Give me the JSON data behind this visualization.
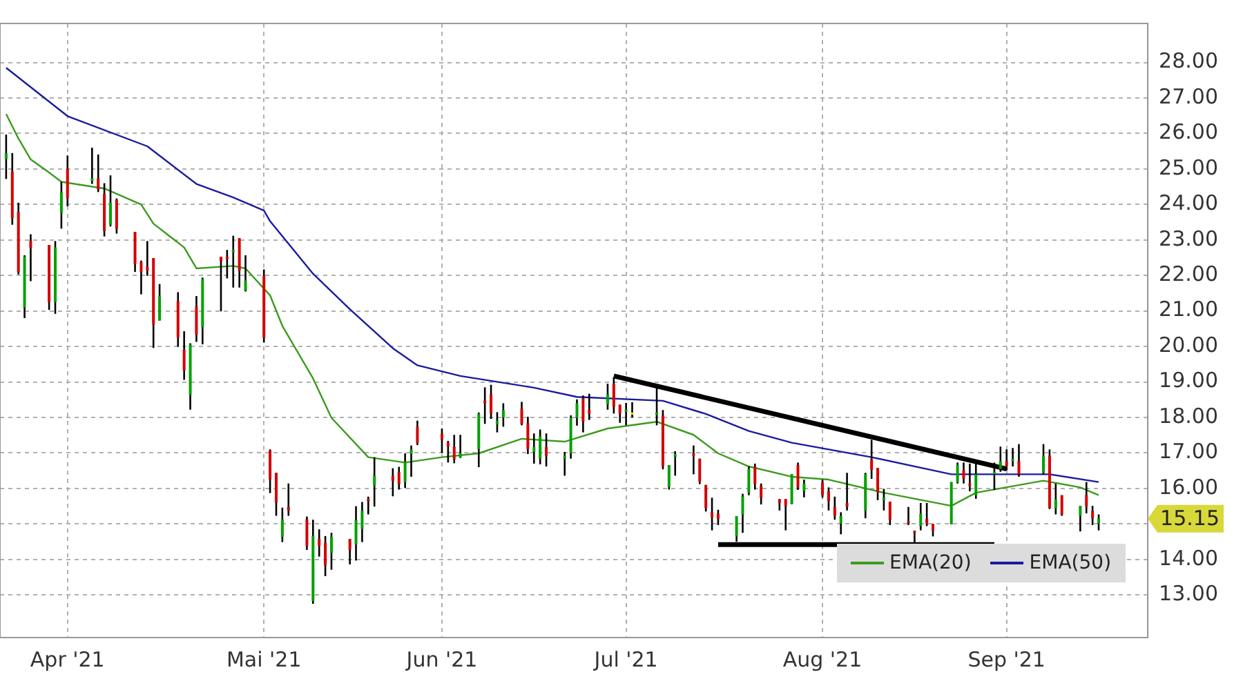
{
  "chart_data": {
    "type": "candlestick",
    "x": [
      "2021-03-22",
      "2021-03-23",
      "2021-03-24",
      "2021-03-25",
      "2021-03-26",
      "2021-03-29",
      "2021-03-30",
      "2021-03-31",
      "2021-04-01",
      "2021-04-05",
      "2021-04-06",
      "2021-04-07",
      "2021-04-08",
      "2021-04-09",
      "2021-04-12",
      "2021-04-13",
      "2021-04-14",
      "2021-04-15",
      "2021-04-16",
      "2021-04-19",
      "2021-04-20",
      "2021-04-21",
      "2021-04-22",
      "2021-04-23",
      "2021-04-26",
      "2021-04-27",
      "2021-04-28",
      "2021-04-29",
      "2021-04-30",
      "2021-05-03",
      "2021-05-04",
      "2021-05-05",
      "2021-05-06",
      "2021-05-07",
      "2021-05-10",
      "2021-05-11",
      "2021-05-12",
      "2021-05-13",
      "2021-05-14",
      "2021-05-17",
      "2021-05-18",
      "2021-05-19",
      "2021-05-20",
      "2021-05-21",
      "2021-05-24",
      "2021-05-25",
      "2021-05-26",
      "2021-05-27",
      "2021-05-28",
      "2021-06-01",
      "2021-06-02",
      "2021-06-03",
      "2021-06-04",
      "2021-06-07",
      "2021-06-08",
      "2021-06-09",
      "2021-06-10",
      "2021-06-11",
      "2021-06-14",
      "2021-06-15",
      "2021-06-16",
      "2021-06-17",
      "2021-06-18",
      "2021-06-21",
      "2021-06-22",
      "2021-06-23",
      "2021-06-24",
      "2021-06-25",
      "2021-06-28",
      "2021-06-29",
      "2021-06-30",
      "2021-07-01",
      "2021-07-02",
      "2021-07-06",
      "2021-07-07",
      "2021-07-08",
      "2021-07-09",
      "2021-07-12",
      "2021-07-13",
      "2021-07-14",
      "2021-07-15",
      "2021-07-16",
      "2021-07-19",
      "2021-07-20",
      "2021-07-21",
      "2021-07-22",
      "2021-07-23",
      "2021-07-26",
      "2021-07-27",
      "2021-07-28",
      "2021-07-29",
      "2021-07-30",
      "2021-08-02",
      "2021-08-03",
      "2021-08-04",
      "2021-08-05",
      "2021-08-06",
      "2021-08-09",
      "2021-08-10",
      "2021-08-11",
      "2021-08-12",
      "2021-08-13",
      "2021-08-16",
      "2021-08-17",
      "2021-08-18",
      "2021-08-19",
      "2021-08-20",
      "2021-08-23",
      "2021-08-24",
      "2021-08-25",
      "2021-08-26",
      "2021-08-27",
      "2021-08-30",
      "2021-08-31",
      "2021-09-01",
      "2021-09-02",
      "2021-09-03",
      "2021-09-07",
      "2021-09-08",
      "2021-09-09",
      "2021-09-10",
      "2021-09-13",
      "2021-09-14",
      "2021-09-15",
      "2021-09-16"
    ],
    "ohlc": [
      [
        25.28,
        25.97,
        24.72,
        25.44
      ],
      [
        24.93,
        25.45,
        23.43,
        23.62
      ],
      [
        23.79,
        24.05,
        22.03,
        22.09
      ],
      [
        21.1,
        22.57,
        20.8,
        22.53
      ],
      [
        22.98,
        23.16,
        21.84,
        22.77
      ],
      [
        22.86,
        22.86,
        21.03,
        21.25
      ],
      [
        21.25,
        22.97,
        20.92,
        22.79
      ],
      [
        23.76,
        24.64,
        23.32,
        24.34
      ],
      [
        25.01,
        25.38,
        23.95,
        24.17
      ],
      [
        24.66,
        25.6,
        24.58,
        24.74
      ],
      [
        24.74,
        25.41,
        24.35,
        24.43
      ],
      [
        24.3,
        24.6,
        23.1,
        23.25
      ],
      [
        23.43,
        24.82,
        23.38,
        24.05
      ],
      [
        24.13,
        24.17,
        23.18,
        23.32
      ],
      [
        23.23,
        23.23,
        22.1,
        22.32
      ],
      [
        22.38,
        22.42,
        21.47,
        22.1
      ],
      [
        22.24,
        22.97,
        21.99,
        22.14
      ],
      [
        22.49,
        22.49,
        19.96,
        20.62
      ],
      [
        20.73,
        21.76,
        20.73,
        21.42
      ],
      [
        21.28,
        21.53,
        19.99,
        20.25
      ],
      [
        19.91,
        20.43,
        19.06,
        19.33
      ],
      [
        18.63,
        20.09,
        18.22,
        20.06
      ],
      [
        21.13,
        21.42,
        20.13,
        20.33
      ],
      [
        20.54,
        21.94,
        20.06,
        21.9
      ],
      [
        22.53,
        22.53,
        20.99,
        22.4
      ],
      [
        22.53,
        22.72,
        21.92,
        22.47
      ],
      [
        22.65,
        23.12,
        21.66,
        22.72
      ],
      [
        23.05,
        23.05,
        21.66,
        22.14
      ],
      [
        21.58,
        22.57,
        21.55,
        21.86
      ],
      [
        21.99,
        22.17,
        20.11,
        20.25
      ],
      [
        17.07,
        17.1,
        15.87,
        16.26
      ],
      [
        16.44,
        16.44,
        15.23,
        15.6
      ],
      [
        14.64,
        15.46,
        14.49,
        15.13
      ],
      [
        15.48,
        16.14,
        15.23,
        15.38
      ],
      [
        15.13,
        15.21,
        14.27,
        14.38
      ],
      [
        12.83,
        15.12,
        12.75,
        14.66
      ],
      [
        14.58,
        14.85,
        14.08,
        14.38
      ],
      [
        14.47,
        14.66,
        13.53,
        13.83
      ],
      [
        14.19,
        14.75,
        13.71,
        14.64
      ],
      [
        14.58,
        14.58,
        13.86,
        14.27
      ],
      [
        14.42,
        15.5,
        13.97,
        15.11
      ],
      [
        14.86,
        15.62,
        14.49,
        15.37
      ],
      [
        15.71,
        15.77,
        15.27,
        15.64
      ],
      [
        16.08,
        16.88,
        15.49,
        16.36
      ],
      [
        16.36,
        16.57,
        15.78,
        16.21
      ],
      [
        16.46,
        16.61,
        15.97,
        16.12
      ],
      [
        16.18,
        16.99,
        16.01,
        16.76
      ],
      [
        16.97,
        17.21,
        16.33,
        17.1
      ],
      [
        17.73,
        17.91,
        17.22,
        17.29
      ],
      [
        17.54,
        17.69,
        17.0,
        17.37
      ],
      [
        17.29,
        17.34,
        16.73,
        17.18
      ],
      [
        17.18,
        17.51,
        16.71,
        16.82
      ],
      [
        16.88,
        17.51,
        16.86,
        16.99
      ],
      [
        17.11,
        18.14,
        16.6,
        18.1
      ],
      [
        18.48,
        18.85,
        17.82,
        18.4
      ],
      [
        18.65,
        18.92,
        17.96,
        18.11
      ],
      [
        17.8,
        18.15,
        17.58,
        17.91
      ],
      [
        18.0,
        18.4,
        17.74,
        18.21
      ],
      [
        18.25,
        18.44,
        17.78,
        17.82
      ],
      [
        17.84,
        18.02,
        16.97,
        17.11
      ],
      [
        17.03,
        17.55,
        16.7,
        17.17
      ],
      [
        16.84,
        17.66,
        16.68,
        17.47
      ],
      [
        17.17,
        17.55,
        16.62,
        16.92
      ],
      [
        16.84,
        17.03,
        16.36,
        16.92
      ],
      [
        16.99,
        18.06,
        16.84,
        17.99
      ],
      [
        17.99,
        18.51,
        17.77,
        18.4
      ],
      [
        18.54,
        18.62,
        17.58,
        17.89
      ],
      [
        18.21,
        18.67,
        17.93,
        18.11
      ],
      [
        18.37,
        18.95,
        18.22,
        18.65
      ],
      [
        18.95,
        19.13,
        18.11,
        18.3
      ],
      [
        18.36,
        18.36,
        17.85,
        18.11
      ],
      [
        18.16,
        18.41,
        17.78,
        18.22
      ],
      [
        18.14,
        18.43,
        18.0,
        18.14
      ],
      [
        18.07,
        18.88,
        17.78,
        18.14
      ],
      [
        18.06,
        18.21,
        16.54,
        16.63
      ],
      [
        16.04,
        16.66,
        15.97,
        16.66
      ],
      [
        16.89,
        17.05,
        16.36,
        16.97
      ],
      [
        16.99,
        17.21,
        16.4,
        16.92
      ],
      [
        16.84,
        16.84,
        16.12,
        16.19
      ],
      [
        16.1,
        16.1,
        15.35,
        15.45
      ],
      [
        15.33,
        15.74,
        14.82,
        15.19
      ],
      [
        15.29,
        15.4,
        14.97,
        15.14
      ],
      [
        14.66,
        15.22,
        14.5,
        15.22
      ],
      [
        15.27,
        15.85,
        14.75,
        15.77
      ],
      [
        15.88,
        16.62,
        15.81,
        16.55
      ],
      [
        16.61,
        16.7,
        15.97,
        16.12
      ],
      [
        16.07,
        16.14,
        15.55,
        15.74
      ],
      [
        15.7,
        15.7,
        15.38,
        15.59
      ],
      [
        15.7,
        15.7,
        14.82,
        15.51
      ],
      [
        15.56,
        16.4,
        15.56,
        16.4
      ],
      [
        16.66,
        16.73,
        15.96,
        16.03
      ],
      [
        15.93,
        16.25,
        15.75,
        16.14
      ],
      [
        16.18,
        16.25,
        15.74,
        15.81
      ],
      [
        15.92,
        16.03,
        15.38,
        15.64
      ],
      [
        15.48,
        15.77,
        15.12,
        15.23
      ],
      [
        15.01,
        15.33,
        14.71,
        15.22
      ],
      [
        15.59,
        16.44,
        15.38,
        15.49
      ],
      [
        15.38,
        16.44,
        15.16,
        16.4
      ],
      [
        16.82,
        17.37,
        16.27,
        16.52
      ],
      [
        16.58,
        16.58,
        15.67,
        15.9
      ],
      [
        15.67,
        15.99,
        15.38,
        15.74
      ],
      [
        15.63,
        15.63,
        14.97,
        15.12
      ],
      [
        15.07,
        15.48,
        14.97,
        15.01
      ],
      [
        14.81,
        14.81,
        14.42,
        14.75
      ],
      [
        14.94,
        15.59,
        14.82,
        15.29
      ],
      [
        15.14,
        15.59,
        14.94,
        15.01
      ],
      [
        15.0,
        15.0,
        14.65,
        14.82
      ],
      [
        14.99,
        16.18,
        14.99,
        16.18
      ],
      [
        16.18,
        16.73,
        16.14,
        16.66
      ],
      [
        16.51,
        16.73,
        16.14,
        16.27
      ],
      [
        16.14,
        16.7,
        15.92,
        16.07
      ],
      [
        15.81,
        16.7,
        15.71,
        16.4
      ],
      [
        16.4,
        16.73,
        15.96,
        16.47
      ],
      [
        16.55,
        17.18,
        16.47,
        16.77
      ],
      [
        16.77,
        17.1,
        16.51,
        16.63
      ],
      [
        16.77,
        17.14,
        16.62,
        16.84
      ],
      [
        16.77,
        17.25,
        16.33,
        16.4
      ],
      [
        16.44,
        17.25,
        16.4,
        16.92
      ],
      [
        16.92,
        17.1,
        15.42,
        15.45
      ],
      [
        15.45,
        16.14,
        15.27,
        15.7
      ],
      [
        15.81,
        15.81,
        15.23,
        15.27
      ],
      [
        15.23,
        15.51,
        14.79,
        15.51
      ],
      [
        15.81,
        16.18,
        15.3,
        15.49
      ],
      [
        15.37,
        15.51,
        14.97,
        15.16
      ],
      [
        15.01,
        15.27,
        14.82,
        15.15
      ]
    ],
    "colors": [
      "#00a000",
      "#d40000",
      "#d40000",
      "#00a000",
      "#d40000",
      "#d40000",
      "#00a000",
      "#00a000",
      "#d40000",
      "#00a000",
      "#d40000",
      "#d40000",
      "#00a000",
      "#d40000",
      "#d40000",
      "#d40000",
      "#d40000",
      "#d40000",
      "#00a000",
      "#d40000",
      "#d40000",
      "#00a000",
      "#d40000",
      "#00a000",
      "#d40000",
      "#d40000",
      "#00a000",
      "#d40000",
      "#00a000",
      "#d40000",
      "#d40000",
      "#d40000",
      "#00a000",
      "#d40000",
      "#d40000",
      "#00a000",
      "#d40000",
      "#d40000",
      "#00a000",
      "#d40000",
      "#00a000",
      "#00a000",
      "#d40000",
      "#00a000",
      "#d40000",
      "#d40000",
      "#00a000",
      "#00a000",
      "#d40000",
      "#d40000",
      "#d40000",
      "#d40000",
      "#00a000",
      "#00a000",
      "#d40000",
      "#d40000",
      "#00a000",
      "#00a000",
      "#d40000",
      "#d40000",
      "#00a000",
      "#00a000",
      "#d40000",
      "#00a000",
      "#00a000",
      "#00a000",
      "#d40000",
      "#d40000",
      "#00a000",
      "#d40000",
      "#d40000",
      "#00a000",
      "#e8e800",
      "#00a000",
      "#d40000",
      "#00a000",
      "#00a000",
      "#d40000",
      "#d40000",
      "#d40000",
      "#d40000",
      "#d40000",
      "#00a000",
      "#00a000",
      "#00a000",
      "#d40000",
      "#d40000",
      "#d40000",
      "#d40000",
      "#00a000",
      "#d40000",
      "#00a000",
      "#d40000",
      "#d40000",
      "#d40000",
      "#00a000",
      "#d40000",
      "#00a000",
      "#d40000",
      "#d40000",
      "#00a000",
      "#d40000",
      "#d40000",
      "#d40000",
      "#00a000",
      "#d40000",
      "#d40000",
      "#00a000",
      "#00a000",
      "#d40000",
      "#d40000",
      "#00a000",
      "#00a000",
      "#00a000",
      "#d40000",
      "#00a000",
      "#d40000",
      "#00a000",
      "#d40000",
      "#00a000",
      "#d40000",
      "#00a000",
      "#d40000",
      "#d40000",
      "#00a000"
    ],
    "series": [
      {
        "name": "EMA(20)",
        "type": "line",
        "color": "#3c9a1e",
        "x": [
          "2021-03-22",
          "2021-03-24",
          "2021-03-26",
          "2021-03-29",
          "2021-03-31",
          "2021-04-07",
          "2021-04-13",
          "2021-04-15",
          "2021-04-20",
          "2021-04-22",
          "2021-04-28",
          "2021-04-30",
          "2021-05-04",
          "2021-05-06",
          "2021-05-11",
          "2021-05-14",
          "2021-05-18",
          "2021-05-20",
          "2021-05-26",
          "2021-06-01",
          "2021-06-07",
          "2021-06-14",
          "2021-06-21",
          "2021-06-28",
          "2021-07-06",
          "2021-07-12",
          "2021-07-16",
          "2021-07-21",
          "2021-07-28",
          "2021-08-03",
          "2021-08-12",
          "2021-08-23",
          "2021-08-27",
          "2021-09-07",
          "2021-09-13",
          "2021-09-16"
        ],
        "values": [
          26.55,
          25.86,
          25.27,
          24.9,
          24.64,
          24.45,
          24.0,
          23.46,
          22.79,
          22.2,
          22.27,
          22.2,
          21.44,
          20.58,
          19.1,
          17.99,
          17.25,
          16.88,
          16.73,
          16.88,
          16.99,
          17.4,
          17.32,
          17.69,
          17.88,
          17.51,
          16.99,
          16.62,
          16.33,
          16.25,
          15.88,
          15.51,
          15.88,
          16.22,
          16.03,
          15.81
        ]
      },
      {
        "name": "EMA(50)",
        "type": "line",
        "color": "#1a1aa0",
        "x": [
          "2021-03-22",
          "2021-04-01",
          "2021-04-14",
          "2021-04-22",
          "2021-04-28",
          "2021-05-03",
          "2021-05-04",
          "2021-05-11",
          "2021-05-17",
          "2021-05-24",
          "2021-05-28",
          "2021-06-04",
          "2021-06-16",
          "2021-06-23",
          "2021-07-07",
          "2021-07-14",
          "2021-07-21",
          "2021-07-28",
          "2021-08-10",
          "2021-08-23",
          "2021-09-08",
          "2021-09-16"
        ],
        "values": [
          27.85,
          26.49,
          25.64,
          24.58,
          24.2,
          23.83,
          23.53,
          22.05,
          21.05,
          19.95,
          19.47,
          19.17,
          18.84,
          18.58,
          18.47,
          18.1,
          17.62,
          17.29,
          16.88,
          16.4,
          16.4,
          16.18
        ]
      },
      {
        "type": "line",
        "color": "#000000",
        "x": [
          "2021-06-29",
          "2021-09-01"
        ],
        "values": [
          19.17,
          16.55
        ]
      },
      {
        "type": "line",
        "color": "#000000",
        "x": [
          "2021-07-16",
          "2021-08-30"
        ],
        "values": [
          14.42,
          14.42
        ]
      }
    ],
    "xlim": [
      "2021-03-21",
      "2021-09-24"
    ],
    "xticks": [
      {
        "value": "2021-04-01",
        "label": "Apr '21"
      },
      {
        "value": "2021-05-03",
        "label": "Mai '21"
      },
      {
        "value": "2021-06-01",
        "label": "Jun '21"
      },
      {
        "value": "2021-07-01",
        "label": "Jul '21"
      },
      {
        "value": "2021-08-02",
        "label": "Aug '21"
      },
      {
        "value": "2021-09-01",
        "label": "Sep '21"
      }
    ],
    "ylim": [
      11.8,
      29.1
    ],
    "yticks": [
      {
        "value": 13,
        "label": "13.00"
      },
      {
        "value": 14,
        "label": "14.00"
      },
      {
        "value": 15,
        "label": null
      },
      {
        "value": 16,
        "label": "16.00"
      },
      {
        "value": 17,
        "label": "17.00"
      },
      {
        "value": 18,
        "label": "18.00"
      },
      {
        "value": 19,
        "label": "19.00"
      },
      {
        "value": 20,
        "label": "20.00"
      },
      {
        "value": 21,
        "label": "21.00"
      },
      {
        "value": 22,
        "label": "22.00"
      },
      {
        "value": 23,
        "label": "23.00"
      },
      {
        "value": 24,
        "label": "24.00"
      },
      {
        "value": 25,
        "label": "25.00"
      },
      {
        "value": 26,
        "label": "26.00"
      },
      {
        "value": 27,
        "label": "27.00"
      },
      {
        "value": 28,
        "label": "28.00"
      }
    ],
    "grid": true,
    "legend": "bottom right",
    "annotations": [
      "15.15"
    ]
  }
}
